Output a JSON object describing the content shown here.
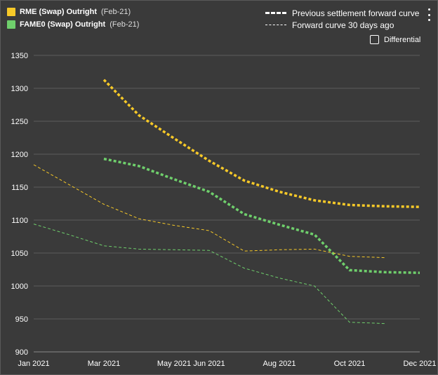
{
  "legend": {
    "series": [
      {
        "name": "RME (Swap) Outright",
        "period": "(Feb-21)",
        "color": "#f7c928"
      },
      {
        "name": "FAME0 (Swap) Outright",
        "period": "(Feb-21)",
        "color": "#6fcf6c"
      }
    ],
    "curves": [
      {
        "label": "Previous settlement forward curve",
        "style": "thick-dashed"
      },
      {
        "label": "Forward curve 30 days ago",
        "style": "thin-dashed"
      }
    ]
  },
  "differential": {
    "label": "Differential",
    "checked": false
  },
  "menu": {
    "icon": "kebab-menu-icon"
  },
  "chart_data": {
    "type": "line",
    "x_tick_labels": [
      "Jan 2021",
      "Mar 2021",
      "May 2021",
      "Jun 2021",
      "Aug 2021",
      "Oct 2021",
      "Dec 2021"
    ],
    "x_range": [
      "Jan 2021",
      "Dec 2021"
    ],
    "ylim": [
      900,
      1350
    ],
    "y_ticks": [
      900,
      950,
      1000,
      1050,
      1100,
      1150,
      1200,
      1250,
      1300,
      1350
    ],
    "grid": true,
    "series": [
      {
        "name": "RME (Swap) Outright",
        "curve": "Previous settlement forward curve",
        "color": "#f7c928",
        "style": "thick-dashed",
        "points": [
          {
            "x": "Mar 2021",
            "y": 1313
          },
          {
            "x": "Apr 2021",
            "y": 1259
          },
          {
            "x": "May 2021",
            "y": 1224
          },
          {
            "x": "Jun 2021",
            "y": 1190
          },
          {
            "x": "Jul 2021",
            "y": 1160
          },
          {
            "x": "Aug 2021",
            "y": 1143
          },
          {
            "x": "Sep 2021",
            "y": 1130
          },
          {
            "x": "Oct 2021",
            "y": 1123
          },
          {
            "x": "Nov 2021",
            "y": 1121
          },
          {
            "x": "Dec 2021",
            "y": 1120
          }
        ]
      },
      {
        "name": "FAME0 (Swap) Outright",
        "curve": "Previous settlement forward curve",
        "color": "#6fcf6c",
        "style": "thick-dashed",
        "points": [
          {
            "x": "Mar 2021",
            "y": 1193
          },
          {
            "x": "Apr 2021",
            "y": 1182
          },
          {
            "x": "May 2021",
            "y": 1162
          },
          {
            "x": "Jun 2021",
            "y": 1143
          },
          {
            "x": "Jul 2021",
            "y": 1109
          },
          {
            "x": "Aug 2021",
            "y": 1093
          },
          {
            "x": "Sep 2021",
            "y": 1078
          },
          {
            "x": "Oct 2021",
            "y": 1024
          },
          {
            "x": "Nov 2021",
            "y": 1021
          },
          {
            "x": "Dec 2021",
            "y": 1020
          }
        ]
      },
      {
        "name": "RME (Swap) Outright",
        "curve": "Forward curve 30 days ago",
        "color": "#f7c928",
        "style": "thin-dashed",
        "points": [
          {
            "x": "Jan 2021",
            "y": 1184
          },
          {
            "x": "Feb 2021",
            "y": 1154
          },
          {
            "x": "Mar 2021",
            "y": 1124
          },
          {
            "x": "Apr 2021",
            "y": 1102
          },
          {
            "x": "May 2021",
            "y": 1092
          },
          {
            "x": "Jun 2021",
            "y": 1084
          },
          {
            "x": "Jul 2021",
            "y": 1053
          },
          {
            "x": "Aug 2021",
            "y": 1055
          },
          {
            "x": "Sep 2021",
            "y": 1056
          },
          {
            "x": "Oct 2021",
            "y": 1045
          },
          {
            "x": "Nov 2021",
            "y": 1043
          }
        ]
      },
      {
        "name": "FAME0 (Swap) Outright",
        "curve": "Forward curve 30 days ago",
        "color": "#6fcf6c",
        "style": "thin-dashed",
        "points": [
          {
            "x": "Jan 2021",
            "y": 1094
          },
          {
            "x": "Feb 2021",
            "y": 1078
          },
          {
            "x": "Mar 2021",
            "y": 1061
          },
          {
            "x": "Apr 2021",
            "y": 1056
          },
          {
            "x": "May 2021",
            "y": 1055
          },
          {
            "x": "Jun 2021",
            "y": 1054
          },
          {
            "x": "Jul 2021",
            "y": 1027
          },
          {
            "x": "Aug 2021",
            "y": 1012
          },
          {
            "x": "Sep 2021",
            "y": 1000
          },
          {
            "x": "Oct 2021",
            "y": 945
          },
          {
            "x": "Nov 2021",
            "y": 943
          }
        ]
      }
    ]
  }
}
